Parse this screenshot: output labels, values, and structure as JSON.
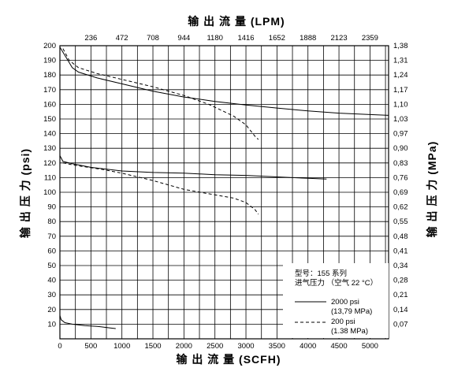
{
  "chart_data": {
    "type": "line",
    "title": "",
    "top_xlabel": "输 出 流 量 (LPM)",
    "xlabel": "输 出 流 量 (SCFH)",
    "ylabel": "输 出 压 力 (psi)",
    "right_ylabel": "输 出 压 力 (MPa)",
    "xlim": [
      0,
      5300
    ],
    "ylim": [
      0,
      200
    ],
    "x_ticks": [
      "0",
      "500",
      "1000",
      "1500",
      "2000",
      "2500",
      "3000",
      "3500",
      "4000",
      "4500",
      "5000"
    ],
    "top_ticks": [
      "236",
      "472",
      "708",
      "944",
      "1180",
      "1416",
      "1652",
      "1888",
      "2123",
      "2359"
    ],
    "y_ticks": [
      "10",
      "20",
      "30",
      "40",
      "50",
      "60",
      "70",
      "80",
      "90",
      "100",
      "110",
      "120",
      "130",
      "140",
      "150",
      "160",
      "170",
      "180",
      "190",
      "200"
    ],
    "right_ticks": [
      "0,07",
      "0,14",
      "0,21",
      "0,28",
      "0,34",
      "0,41",
      "0,48",
      "0,55",
      "0,62",
      "0,69",
      "0,76",
      "0,83",
      "0,90",
      "0,97",
      "1,03",
      "1,10",
      "1,17",
      "1,24",
      "1,31",
      "1,38"
    ],
    "grid": true,
    "legend": {
      "position": "lower-right",
      "model": "型号：155 系列",
      "inlet": "进气压力 （空气 22 °C）",
      "solid_line1": "2000 psi",
      "solid_line2": "(13,79 MPa)",
      "dashed_line1": "200 psi",
      "dashed_line2": "(1.38 MPa)"
    },
    "series": [
      {
        "name": "2000 psi (13,79 MPa)",
        "dash": false,
        "points": [
          [
            0,
            199
          ],
          [
            100,
            192
          ],
          [
            200,
            185
          ],
          [
            300,
            182
          ],
          [
            600,
            178
          ],
          [
            1000,
            174
          ],
          [
            1500,
            169
          ],
          [
            2000,
            165
          ],
          [
            2500,
            162
          ],
          [
            3000,
            159.5
          ],
          [
            3500,
            157.5
          ],
          [
            4000,
            155.5
          ],
          [
            4500,
            154
          ],
          [
            5000,
            153
          ],
          [
            5300,
            152.5
          ]
        ]
      },
      {
        "name": "200 psi (1.38 MPa)",
        "dash": true,
        "points": [
          [
            50,
            198
          ],
          [
            150,
            190
          ],
          [
            300,
            185
          ],
          [
            600,
            181
          ],
          [
            1000,
            177
          ],
          [
            1500,
            172
          ],
          [
            2000,
            166
          ],
          [
            2400,
            160
          ],
          [
            2800,
            152
          ],
          [
            3000,
            146
          ],
          [
            3150,
            138
          ],
          [
            3200,
            136
          ]
        ]
      },
      {
        "name": "2000 psi (13,79 MPa)",
        "dash": false,
        "points": [
          [
            0,
            125
          ],
          [
            50,
            121
          ],
          [
            200,
            119.5
          ],
          [
            500,
            117
          ],
          [
            1000,
            114.5
          ],
          [
            1500,
            113.5
          ],
          [
            2000,
            113
          ],
          [
            2500,
            112
          ],
          [
            3000,
            111.5
          ],
          [
            3500,
            110.5
          ],
          [
            4000,
            109.5
          ],
          [
            4300,
            109
          ]
        ]
      },
      {
        "name": "200 psi (1.38 MPa)",
        "dash": true,
        "points": [
          [
            50,
            120
          ],
          [
            300,
            118
          ],
          [
            700,
            115.5
          ],
          [
            1000,
            113
          ],
          [
            1500,
            108
          ],
          [
            2000,
            102
          ],
          [
            2400,
            99
          ],
          [
            2800,
            96
          ],
          [
            3000,
            93
          ],
          [
            3150,
            88
          ],
          [
            3200,
            85
          ]
        ]
      },
      {
        "name": "2000 psi (13,79 MPa)",
        "dash": false,
        "points": [
          [
            0,
            16
          ],
          [
            20,
            13
          ],
          [
            80,
            11
          ],
          [
            200,
            10
          ],
          [
            400,
            9
          ],
          [
            600,
            8.5
          ],
          [
            800,
            7.5
          ],
          [
            900,
            7
          ]
        ]
      }
    ]
  }
}
